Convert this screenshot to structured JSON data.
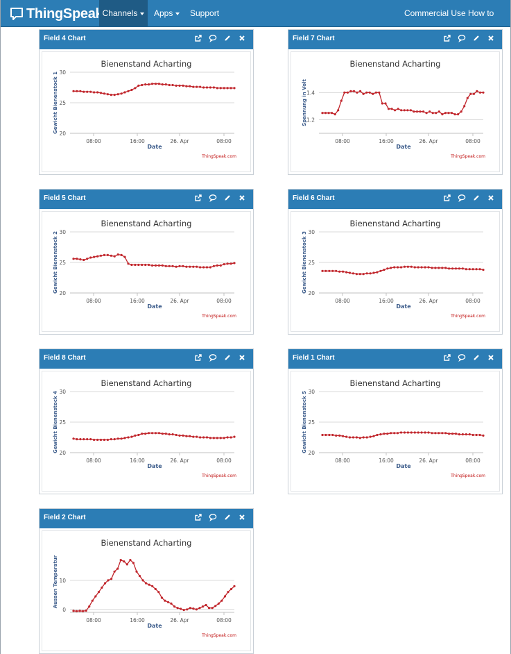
{
  "nav": {
    "brand": "ThingSpeak",
    "tm": "™",
    "items": [
      {
        "label": "Channels",
        "dropdown": true,
        "active": true
      },
      {
        "label": "Apps",
        "dropdown": true,
        "active": false
      },
      {
        "label": "Support",
        "dropdown": true,
        "active": false
      },
      {
        "label": "Commercial Use",
        "dropdown": false,
        "active": false
      },
      {
        "label": "How to Buy",
        "dropdown": false,
        "active": false
      }
    ]
  },
  "colors": {
    "header": "#2c7db5",
    "active_tab": "#1f5b85",
    "series": "#c1272d",
    "credit": "#c01010"
  },
  "panel_icons": [
    "external-link-icon",
    "comment-icon",
    "pencil-icon",
    "close-icon"
  ],
  "panels": [
    {
      "id": "field4",
      "title": "Field 4 Chart"
    },
    {
      "id": "field7",
      "title": "Field 7 Chart"
    },
    {
      "id": "field5",
      "title": "Field 5 Chart"
    },
    {
      "id": "field6",
      "title": "Field 6 Chart"
    },
    {
      "id": "field8",
      "title": "Field 8 Chart"
    },
    {
      "id": "field1",
      "title": "Field 1 Chart"
    },
    {
      "id": "field2",
      "title": "Field 2 Chart"
    }
  ],
  "chart_data": [
    {
      "type": "line",
      "title": "Bienenstand Acharting",
      "xlabel": "Date",
      "ylabel": "Gewicht Bienenstock 1",
      "credit": "ThingSpeak.com",
      "x_ticks": [
        "08:00",
        "16:00",
        "26. Apr",
        "08:00"
      ],
      "y_ticks": [
        20,
        25,
        30
      ],
      "ylim": [
        20,
        30
      ],
      "grid": true,
      "series": [
        {
          "values": [
            26.9,
            26.9,
            26.9,
            26.8,
            26.8,
            26.8,
            26.7,
            26.7,
            26.6,
            26.5,
            26.4,
            26.3,
            26.3,
            26.4,
            26.5,
            26.7,
            26.9,
            27.1,
            27.4,
            27.8,
            27.9,
            28.0,
            28.0,
            28.1,
            28.1,
            28.1,
            28.0,
            28.0,
            27.9,
            27.9,
            27.8,
            27.8,
            27.8,
            27.7,
            27.7,
            27.6,
            27.6,
            27.6,
            27.5,
            27.5,
            27.5,
            27.5,
            27.4,
            27.4,
            27.4,
            27.4,
            27.4,
            27.4
          ]
        }
      ]
    },
    {
      "type": "line",
      "title": "Bienenstand Acharting",
      "xlabel": "Date",
      "ylabel": "Spannung in Volt",
      "credit": "ThingSpeak.com",
      "x_ticks": [
        "08:00",
        "16:00",
        "26. Apr",
        "08:00"
      ],
      "y_ticks": [
        1.2,
        1.4
      ],
      "ylim": [
        1.1,
        1.55
      ],
      "grid": true,
      "series": [
        {
          "values": [
            1.25,
            1.25,
            1.25,
            1.25,
            1.24,
            1.27,
            1.34,
            1.4,
            1.4,
            1.41,
            1.41,
            1.4,
            1.41,
            1.39,
            1.4,
            1.4,
            1.39,
            1.4,
            1.4,
            1.32,
            1.32,
            1.28,
            1.28,
            1.27,
            1.28,
            1.27,
            1.27,
            1.27,
            1.27,
            1.26,
            1.26,
            1.26,
            1.26,
            1.25,
            1.26,
            1.25,
            1.25,
            1.26,
            1.24,
            1.25,
            1.25,
            1.25,
            1.24,
            1.24,
            1.26,
            1.3,
            1.36,
            1.39,
            1.39,
            1.41,
            1.4,
            1.4
          ]
        }
      ]
    },
    {
      "type": "line",
      "title": "Bienenstand Acharting",
      "xlabel": "Date",
      "ylabel": "Gewicht Bienenstock 2",
      "credit": "ThingSpeak.com",
      "x_ticks": [
        "08:00",
        "16:00",
        "26. Apr",
        "08:00"
      ],
      "y_ticks": [
        20,
        25,
        30
      ],
      "ylim": [
        20,
        30
      ],
      "grid": true,
      "series": [
        {
          "values": [
            25.6,
            25.6,
            25.5,
            25.4,
            25.6,
            25.8,
            25.9,
            26.0,
            26.1,
            26.2,
            26.2,
            26.1,
            26.0,
            26.3,
            26.2,
            25.9,
            24.8,
            24.6,
            24.6,
            24.6,
            24.6,
            24.6,
            24.6,
            24.5,
            24.5,
            24.5,
            24.5,
            24.4,
            24.4,
            24.4,
            24.3,
            24.4,
            24.4,
            24.3,
            24.3,
            24.3,
            24.3,
            24.2,
            24.2,
            24.2,
            24.2,
            24.4,
            24.5,
            24.5,
            24.7,
            24.8,
            24.8,
            24.9
          ]
        }
      ]
    },
    {
      "type": "line",
      "title": "Bienenstand Acharting",
      "xlabel": "Date",
      "ylabel": "Gewicht Bienenstock 3",
      "credit": "ThingSpeak.com",
      "x_ticks": [
        "08:00",
        "16:00",
        "26. Apr",
        "08:00"
      ],
      "y_ticks": [
        20,
        25,
        30
      ],
      "ylim": [
        20,
        30
      ],
      "grid": true,
      "series": [
        {
          "values": [
            23.6,
            23.6,
            23.6,
            23.6,
            23.6,
            23.5,
            23.5,
            23.4,
            23.3,
            23.2,
            23.1,
            23.1,
            23.1,
            23.2,
            23.2,
            23.3,
            23.4,
            23.6,
            23.8,
            24.0,
            24.1,
            24.2,
            24.2,
            24.2,
            24.3,
            24.3,
            24.3,
            24.2,
            24.2,
            24.2,
            24.2,
            24.2,
            24.1,
            24.1,
            24.1,
            24.1,
            24.1,
            24.0,
            24.0,
            24.0,
            24.0,
            24.0,
            23.9,
            23.9,
            23.9,
            23.9,
            23.9,
            23.8
          ]
        }
      ]
    },
    {
      "type": "line",
      "title": "Bienenstand Acharting",
      "xlabel": "Date",
      "ylabel": "Gewicht Bienenstock 4",
      "credit": "ThingSpeak.com",
      "x_ticks": [
        "08:00",
        "16:00",
        "26. Apr",
        "08:00"
      ],
      "y_ticks": [
        20,
        25,
        30
      ],
      "ylim": [
        20,
        30
      ],
      "grid": true,
      "series": [
        {
          "values": [
            22.3,
            22.2,
            22.2,
            22.2,
            22.2,
            22.2,
            22.1,
            22.1,
            22.1,
            22.1,
            22.1,
            22.2,
            22.2,
            22.3,
            22.3,
            22.4,
            22.5,
            22.6,
            22.8,
            22.9,
            23.1,
            23.1,
            23.2,
            23.2,
            23.2,
            23.2,
            23.1,
            23.1,
            23.0,
            23.0,
            22.9,
            22.8,
            22.8,
            22.7,
            22.7,
            22.6,
            22.6,
            22.5,
            22.5,
            22.5,
            22.4,
            22.4,
            22.4,
            22.4,
            22.4,
            22.5,
            22.5,
            22.6
          ]
        }
      ]
    },
    {
      "type": "line",
      "title": "Bienenstand Acharting",
      "xlabel": "Date",
      "ylabel": "Gewicht Bienenstock 5",
      "credit": "ThingSpeak.com",
      "x_ticks": [
        "08:00",
        "16:00",
        "26. Apr",
        "08:00"
      ],
      "y_ticks": [
        20,
        25,
        30
      ],
      "ylim": [
        20,
        30
      ],
      "grid": true,
      "series": [
        {
          "values": [
            22.9,
            22.9,
            22.9,
            22.9,
            22.8,
            22.8,
            22.7,
            22.6,
            22.5,
            22.5,
            22.5,
            22.4,
            22.5,
            22.5,
            22.6,
            22.7,
            22.9,
            23.0,
            23.1,
            23.1,
            23.2,
            23.2,
            23.2,
            23.3,
            23.3,
            23.3,
            23.3,
            23.3,
            23.3,
            23.3,
            23.3,
            23.3,
            23.2,
            23.2,
            23.2,
            23.2,
            23.2,
            23.1,
            23.1,
            23.1,
            23.0,
            23.0,
            23.0,
            23.0,
            22.9,
            22.9,
            22.9,
            22.8
          ]
        }
      ]
    },
    {
      "type": "line",
      "title": "Bienenstand Acharting",
      "xlabel": "Date",
      "ylabel": "Aussen Temperatur",
      "credit": "ThingSpeak.com",
      "x_ticks": [
        "08:00",
        "16:00",
        "26. Apr",
        "08:00"
      ],
      "y_ticks": [
        0,
        10
      ],
      "ylim": [
        -1,
        20
      ],
      "grid": true,
      "series": [
        {
          "values": [
            -0.5,
            -0.6,
            -0.5,
            -0.6,
            -0.4,
            1.0,
            3.0,
            4.5,
            6.0,
            7.5,
            9.0,
            10.0,
            10.5,
            13.0,
            14.0,
            17.0,
            16.5,
            15.5,
            17.0,
            16.0,
            13.0,
            11.5,
            10.0,
            9.0,
            8.5,
            8.0,
            7.0,
            6.0,
            4.0,
            3.0,
            2.5,
            2.0,
            1.0,
            0.5,
            0.2,
            -0.2,
            0.0,
            0.5,
            0.3,
            0.0,
            0.5,
            1.0,
            1.5,
            0.5,
            0.5,
            1.2,
            2.0,
            3.0,
            4.5,
            6.0,
            7.0,
            8.0
          ]
        }
      ]
    }
  ]
}
